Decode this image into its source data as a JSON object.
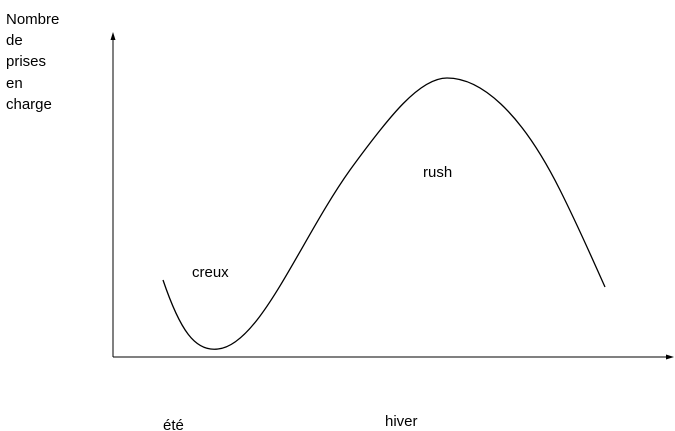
{
  "y_axis_label": [
    "Nombre",
    "de",
    "prises",
    "en",
    "charge"
  ],
  "curve_labels": {
    "low": "creux",
    "peak": "rush"
  },
  "x_labels": {
    "summer": "été",
    "winter": "hiver"
  }
}
